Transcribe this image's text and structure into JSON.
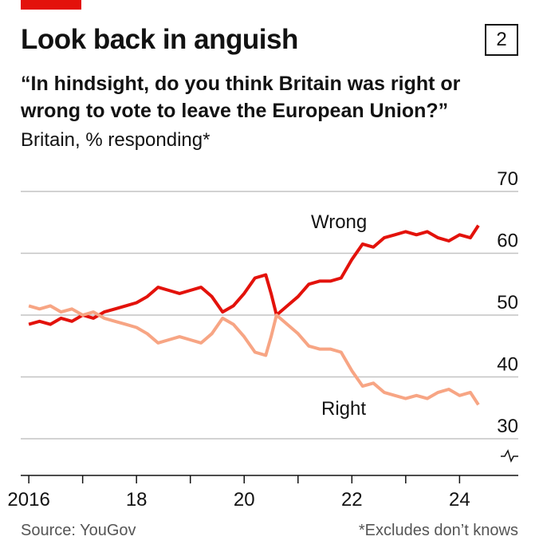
{
  "header": {
    "title": "Look back in anguish",
    "badge": "2",
    "subtitle": "“In hindsight, do you think Britain was right or wrong to vote to leave the European Union?”",
    "unit_line": "Britain, % responding*"
  },
  "footer": {
    "source": "Source: YouGov",
    "note": "*Excludes don’t knows"
  },
  "colors": {
    "accent": "#e3120b",
    "wrong": "#e3120b",
    "right": "#f7a584"
  },
  "chart_data": {
    "type": "line",
    "title": "Look back in anguish",
    "ylabel": "",
    "xlabel": "",
    "ylim": [
      30,
      70
    ],
    "xlim": [
      2015.85,
      2024.35
    ],
    "y_ticks": [
      30,
      40,
      50,
      60,
      70
    ],
    "x_ticks": [
      {
        "value": 2016,
        "label": "2016"
      },
      {
        "value": 2018,
        "label": "18"
      },
      {
        "value": 2020,
        "label": "20"
      },
      {
        "value": 2022,
        "label": "22"
      },
      {
        "value": 2024,
        "label": "24"
      }
    ],
    "axis_break_below": 30,
    "grid": true,
    "series": [
      {
        "name": "Wrong",
        "color": "#e3120b",
        "x": [
          2016.0,
          2016.2,
          2016.4,
          2016.6,
          2016.8,
          2017.0,
          2017.2,
          2017.4,
          2017.6,
          2017.8,
          2018.0,
          2018.2,
          2018.4,
          2018.6,
          2018.8,
          2019.0,
          2019.2,
          2019.4,
          2019.6,
          2019.8,
          2020.0,
          2020.2,
          2020.4,
          2020.5,
          2020.6,
          2020.8,
          2021.0,
          2021.2,
          2021.4,
          2021.6,
          2021.8,
          2022.0,
          2022.2,
          2022.4,
          2022.6,
          2022.8,
          2023.0,
          2023.2,
          2023.4,
          2023.6,
          2023.8,
          2024.0,
          2024.2,
          2024.35
        ],
        "values": [
          48.5,
          49,
          48.5,
          49.5,
          49,
          50,
          49.5,
          50.5,
          51,
          51.5,
          52,
          53,
          54.5,
          54,
          53.5,
          54,
          54.5,
          53,
          50.5,
          51.5,
          53.5,
          56,
          56.5,
          53.5,
          50,
          51.5,
          53,
          55,
          55.5,
          55.5,
          56,
          59,
          61.5,
          61,
          62.5,
          63,
          63.5,
          63,
          63.5,
          62.5,
          62,
          63,
          62.5,
          64.5
        ]
      },
      {
        "name": "Right",
        "color": "#f7a584",
        "x": [
          2016.0,
          2016.2,
          2016.4,
          2016.6,
          2016.8,
          2017.0,
          2017.2,
          2017.4,
          2017.6,
          2017.8,
          2018.0,
          2018.2,
          2018.4,
          2018.6,
          2018.8,
          2019.0,
          2019.2,
          2019.4,
          2019.6,
          2019.8,
          2020.0,
          2020.2,
          2020.4,
          2020.5,
          2020.6,
          2020.8,
          2021.0,
          2021.2,
          2021.4,
          2021.6,
          2021.8,
          2022.0,
          2022.2,
          2022.4,
          2022.6,
          2022.8,
          2023.0,
          2023.2,
          2023.4,
          2023.6,
          2023.8,
          2024.0,
          2024.2,
          2024.35
        ],
        "values": [
          51.5,
          51,
          51.5,
          50.5,
          51,
          50,
          50.5,
          49.5,
          49,
          48.5,
          48,
          47,
          45.5,
          46,
          46.5,
          46,
          45.5,
          47,
          49.5,
          48.5,
          46.5,
          44,
          43.5,
          46.5,
          50,
          48.5,
          47,
          45,
          44.5,
          44.5,
          44,
          41,
          38.5,
          39,
          37.5,
          37,
          36.5,
          37,
          36.5,
          37.5,
          38,
          37,
          37.5,
          35.5
        ]
      }
    ],
    "annotations": [
      {
        "text": "Wrong",
        "series": "Wrong"
      },
      {
        "text": "Right",
        "series": "Right"
      }
    ]
  }
}
